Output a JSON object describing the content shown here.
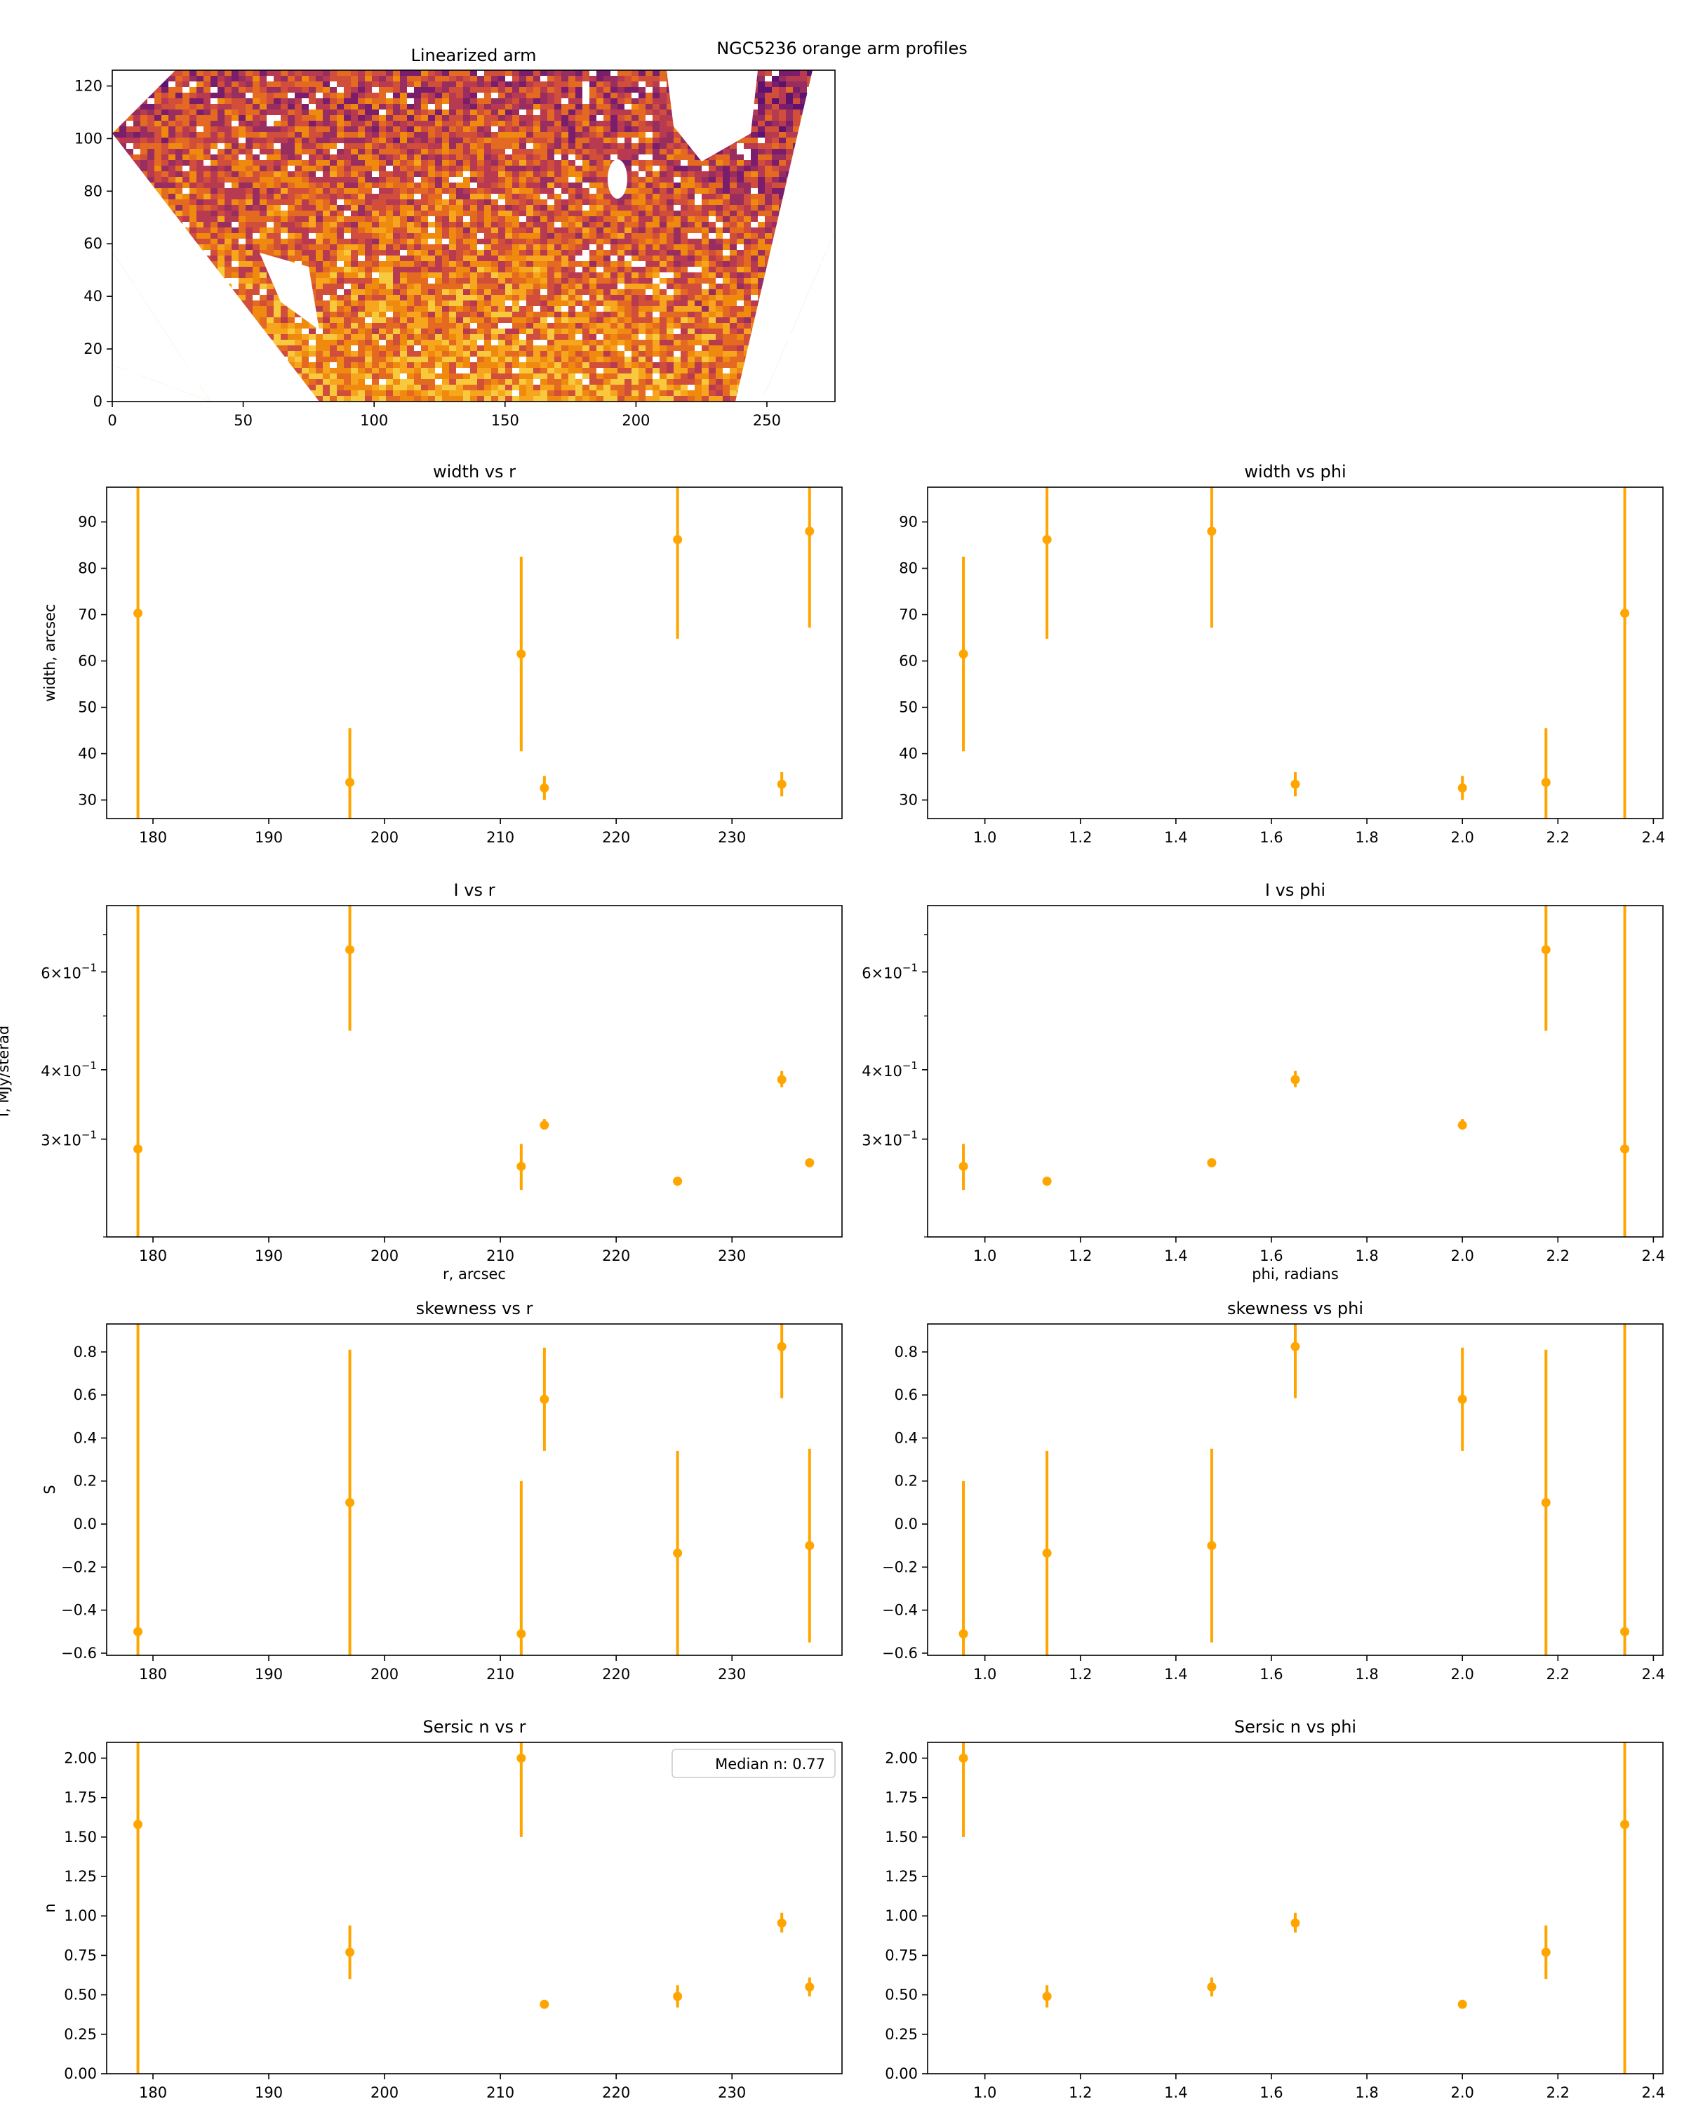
{
  "figure": {
    "suptitle": "NGC5236 orange arm profiles",
    "errorbar_color": "#FFA500"
  },
  "heatmap": {
    "title": "Linearized arm",
    "x_ticks": [
      "0",
      "50",
      "100",
      "150",
      "200",
      "250"
    ],
    "y_ticks": [
      "0",
      "20",
      "40",
      "60",
      "80",
      "100",
      "120"
    ],
    "colormap": "inferno",
    "masked_color": "#FFFFFF"
  },
  "chart_data": [
    {
      "id": "width_r",
      "type": "scatter",
      "title": "width vs r",
      "xlabel": "",
      "ylabel": "width, arcsec",
      "xlim": [
        176,
        239.5
      ],
      "ylim": [
        26,
        97.5
      ],
      "yscale": "linear",
      "x_ticks": [
        180,
        190,
        200,
        210,
        220,
        230
      ],
      "x_tick_labels": [
        "180",
        "190",
        "200",
        "210",
        "220",
        "230"
      ],
      "y_ticks": [
        30,
        40,
        50,
        60,
        70,
        80,
        90
      ],
      "y_tick_labels": [
        "30",
        "40",
        "50",
        "60",
        "70",
        "80",
        "90"
      ],
      "points": [
        {
          "x": 178.7,
          "y": 70.3,
          "lo": 26.0,
          "hi": 97.5
        },
        {
          "x": 197.0,
          "y": 33.8,
          "lo": 26.0,
          "hi": 45.5
        },
        {
          "x": 211.8,
          "y": 61.5,
          "lo": 40.5,
          "hi": 82.5
        },
        {
          "x": 213.8,
          "y": 32.6,
          "lo": 30.0,
          "hi": 35.2
        },
        {
          "x": 225.3,
          "y": 86.2,
          "lo": 64.8,
          "hi": 97.5
        },
        {
          "x": 234.3,
          "y": 33.4,
          "lo": 30.8,
          "hi": 36.0
        },
        {
          "x": 236.7,
          "y": 88.0,
          "lo": 67.2,
          "hi": 97.5
        }
      ]
    },
    {
      "id": "width_phi",
      "type": "scatter",
      "title": "width vs phi",
      "xlabel": "",
      "ylabel": "",
      "xlim": [
        0.88,
        2.42
      ],
      "ylim": [
        26,
        97.5
      ],
      "yscale": "linear",
      "x_ticks": [
        1.0,
        1.2,
        1.4,
        1.6,
        1.8,
        2.0,
        2.2,
        2.4
      ],
      "x_tick_labels": [
        "1.0",
        "1.2",
        "1.4",
        "1.6",
        "1.8",
        "2.0",
        "2.2",
        "2.4"
      ],
      "y_ticks": [
        30,
        40,
        50,
        60,
        70,
        80,
        90
      ],
      "y_tick_labels": [
        "30",
        "40",
        "50",
        "60",
        "70",
        "80",
        "90"
      ],
      "points": [
        {
          "x": 0.955,
          "y": 61.5,
          "lo": 40.5,
          "hi": 82.5
        },
        {
          "x": 1.13,
          "y": 86.2,
          "lo": 64.8,
          "hi": 97.5
        },
        {
          "x": 1.475,
          "y": 88.0,
          "lo": 67.2,
          "hi": 97.5
        },
        {
          "x": 1.65,
          "y": 33.4,
          "lo": 30.8,
          "hi": 36.0
        },
        {
          "x": 2.0,
          "y": 32.6,
          "lo": 30.0,
          "hi": 35.2
        },
        {
          "x": 2.175,
          "y": 33.8,
          "lo": 26.0,
          "hi": 45.5
        },
        {
          "x": 2.34,
          "y": 70.3,
          "lo": 26.0,
          "hi": 97.5
        }
      ]
    },
    {
      "id": "I_r",
      "type": "scatter",
      "title": "I vs r",
      "xlabel": "r, arcsec",
      "ylabel": "I, MJy/sterad",
      "xlim": [
        176,
        239.5
      ],
      "ylim": [
        0.2,
        0.79
      ],
      "yscale": "log",
      "x_ticks": [
        180,
        190,
        200,
        210,
        220,
        230
      ],
      "x_tick_labels": [
        "180",
        "190",
        "200",
        "210",
        "220",
        "230"
      ],
      "y_ticks": [
        0.3,
        0.4,
        0.6
      ],
      "y_tick_labels": [
        "3×10",
        "4×10",
        "6×10"
      ],
      "y_tick_exp": "−1",
      "points": [
        {
          "x": 178.7,
          "y": 0.288,
          "lo": 0.2,
          "hi": 0.79
        },
        {
          "x": 197.0,
          "y": 0.658,
          "lo": 0.47,
          "hi": 0.79
        },
        {
          "x": 211.8,
          "y": 0.268,
          "lo": 0.243,
          "hi": 0.294
        },
        {
          "x": 213.8,
          "y": 0.318,
          "lo": 0.312,
          "hi": 0.326
        },
        {
          "x": 225.3,
          "y": 0.252,
          "lo": 0.248,
          "hi": 0.256
        },
        {
          "x": 234.3,
          "y": 0.384,
          "lo": 0.372,
          "hi": 0.398
        },
        {
          "x": 236.7,
          "y": 0.272,
          "lo": 0.27,
          "hi": 0.275
        }
      ]
    },
    {
      "id": "I_phi",
      "type": "scatter",
      "title": "I vs phi",
      "xlabel": "phi, radians",
      "ylabel": "",
      "xlim": [
        0.88,
        2.42
      ],
      "ylim": [
        0.2,
        0.79
      ],
      "yscale": "log",
      "x_ticks": [
        1.0,
        1.2,
        1.4,
        1.6,
        1.8,
        2.0,
        2.2,
        2.4
      ],
      "x_tick_labels": [
        "1.0",
        "1.2",
        "1.4",
        "1.6",
        "1.8",
        "2.0",
        "2.2",
        "2.4"
      ],
      "y_ticks": [
        0.3,
        0.4,
        0.6
      ],
      "y_tick_labels": [
        "3×10",
        "4×10",
        "6×10"
      ],
      "y_tick_exp": "−1",
      "points": [
        {
          "x": 0.955,
          "y": 0.268,
          "lo": 0.243,
          "hi": 0.294
        },
        {
          "x": 1.13,
          "y": 0.252,
          "lo": 0.248,
          "hi": 0.256
        },
        {
          "x": 1.475,
          "y": 0.272,
          "lo": 0.27,
          "hi": 0.275
        },
        {
          "x": 1.65,
          "y": 0.384,
          "lo": 0.372,
          "hi": 0.398
        },
        {
          "x": 2.0,
          "y": 0.318,
          "lo": 0.312,
          "hi": 0.326
        },
        {
          "x": 2.175,
          "y": 0.658,
          "lo": 0.47,
          "hi": 0.79
        },
        {
          "x": 2.34,
          "y": 0.288,
          "lo": 0.2,
          "hi": 0.79
        }
      ]
    },
    {
      "id": "skew_r",
      "type": "scatter",
      "title": "skewness vs r",
      "xlabel": "",
      "ylabel": "S",
      "xlim": [
        176,
        239.5
      ],
      "ylim": [
        -0.61,
        0.93
      ],
      "yscale": "linear",
      "x_ticks": [
        180,
        190,
        200,
        210,
        220,
        230
      ],
      "x_tick_labels": [
        "180",
        "190",
        "200",
        "210",
        "220",
        "230"
      ],
      "y_ticks": [
        -0.6,
        -0.4,
        -0.2,
        0.0,
        0.2,
        0.4,
        0.6,
        0.8
      ],
      "y_tick_labels": [
        "−0.6",
        "−0.4",
        "−0.2",
        "0.0",
        "0.2",
        "0.4",
        "0.6",
        "0.8"
      ],
      "points": [
        {
          "x": 178.7,
          "y": -0.5,
          "lo": -0.61,
          "hi": 0.93
        },
        {
          "x": 197.0,
          "y": 0.1,
          "lo": -0.61,
          "hi": 0.81
        },
        {
          "x": 211.8,
          "y": -0.51,
          "lo": -0.61,
          "hi": 0.2
        },
        {
          "x": 213.8,
          "y": 0.58,
          "lo": 0.34,
          "hi": 0.82
        },
        {
          "x": 225.3,
          "y": -0.135,
          "lo": -0.61,
          "hi": 0.34
        },
        {
          "x": 234.3,
          "y": 0.825,
          "lo": 0.585,
          "hi": 0.93
        },
        {
          "x": 236.7,
          "y": -0.1,
          "lo": -0.55,
          "hi": 0.35
        }
      ]
    },
    {
      "id": "skew_phi",
      "type": "scatter",
      "title": "skewness vs phi",
      "xlabel": "",
      "ylabel": "",
      "xlim": [
        0.88,
        2.42
      ],
      "ylim": [
        -0.61,
        0.93
      ],
      "yscale": "linear",
      "x_ticks": [
        1.0,
        1.2,
        1.4,
        1.6,
        1.8,
        2.0,
        2.2,
        2.4
      ],
      "x_tick_labels": [
        "1.0",
        "1.2",
        "1.4",
        "1.6",
        "1.8",
        "2.0",
        "2.2",
        "2.4"
      ],
      "y_ticks": [
        -0.6,
        -0.4,
        -0.2,
        0.0,
        0.2,
        0.4,
        0.6,
        0.8
      ],
      "y_tick_labels": [
        "−0.6",
        "−0.4",
        "−0.2",
        "0.0",
        "0.2",
        "0.4",
        "0.6",
        "0.8"
      ],
      "points": [
        {
          "x": 0.955,
          "y": -0.51,
          "lo": -0.61,
          "hi": 0.2
        },
        {
          "x": 1.13,
          "y": -0.135,
          "lo": -0.61,
          "hi": 0.34
        },
        {
          "x": 1.475,
          "y": -0.1,
          "lo": -0.55,
          "hi": 0.35
        },
        {
          "x": 1.65,
          "y": 0.825,
          "lo": 0.585,
          "hi": 0.93
        },
        {
          "x": 2.0,
          "y": 0.58,
          "lo": 0.34,
          "hi": 0.82
        },
        {
          "x": 2.175,
          "y": 0.1,
          "lo": -0.61,
          "hi": 0.81
        },
        {
          "x": 2.34,
          "y": -0.5,
          "lo": -0.61,
          "hi": 0.93
        }
      ]
    },
    {
      "id": "n_r",
      "type": "scatter",
      "title": "Sersic n vs r",
      "xlabel": "",
      "ylabel": "n",
      "xlim": [
        176,
        239.5
      ],
      "ylim": [
        0.0,
        2.1
      ],
      "yscale": "linear",
      "x_ticks": [
        180,
        190,
        200,
        210,
        220,
        230
      ],
      "x_tick_labels": [
        "180",
        "190",
        "200",
        "210",
        "220",
        "230"
      ],
      "y_ticks": [
        0.0,
        0.25,
        0.5,
        0.75,
        1.0,
        1.25,
        1.5,
        1.75,
        2.0
      ],
      "y_tick_labels": [
        "0.00",
        "0.25",
        "0.50",
        "0.75",
        "1.00",
        "1.25",
        "1.50",
        "1.75",
        "2.00"
      ],
      "legend": "Median n: 0.77",
      "points": [
        {
          "x": 178.7,
          "y": 1.58,
          "lo": 0.0,
          "hi": 2.1
        },
        {
          "x": 197.0,
          "y": 0.77,
          "lo": 0.6,
          "hi": 0.94
        },
        {
          "x": 211.8,
          "y": 2.0,
          "lo": 1.5,
          "hi": 2.1
        },
        {
          "x": 213.8,
          "y": 0.44,
          "lo": 0.415,
          "hi": 0.465
        },
        {
          "x": 225.3,
          "y": 0.49,
          "lo": 0.42,
          "hi": 0.56
        },
        {
          "x": 234.3,
          "y": 0.955,
          "lo": 0.895,
          "hi": 1.02
        },
        {
          "x": 236.7,
          "y": 0.55,
          "lo": 0.49,
          "hi": 0.61
        }
      ]
    },
    {
      "id": "n_phi",
      "type": "scatter",
      "title": "Sersic n vs phi",
      "xlabel": "",
      "ylabel": "",
      "xlim": [
        0.88,
        2.42
      ],
      "ylim": [
        0.0,
        2.1
      ],
      "yscale": "linear",
      "x_ticks": [
        1.0,
        1.2,
        1.4,
        1.6,
        1.8,
        2.0,
        2.2,
        2.4
      ],
      "x_tick_labels": [
        "1.0",
        "1.2",
        "1.4",
        "1.6",
        "1.8",
        "2.0",
        "2.2",
        "2.4"
      ],
      "y_ticks": [
        0.0,
        0.25,
        0.5,
        0.75,
        1.0,
        1.25,
        1.5,
        1.75,
        2.0
      ],
      "y_tick_labels": [
        "0.00",
        "0.25",
        "0.50",
        "0.75",
        "1.00",
        "1.25",
        "1.50",
        "1.75",
        "2.00"
      ],
      "points": [
        {
          "x": 0.955,
          "y": 2.0,
          "lo": 1.5,
          "hi": 2.1
        },
        {
          "x": 1.13,
          "y": 0.49,
          "lo": 0.42,
          "hi": 0.56
        },
        {
          "x": 1.475,
          "y": 0.55,
          "lo": 0.49,
          "hi": 0.61
        },
        {
          "x": 1.65,
          "y": 0.955,
          "lo": 0.895,
          "hi": 1.02
        },
        {
          "x": 2.0,
          "y": 0.44,
          "lo": 0.415,
          "hi": 0.465
        },
        {
          "x": 2.175,
          "y": 0.77,
          "lo": 0.6,
          "hi": 0.94
        },
        {
          "x": 2.34,
          "y": 1.58,
          "lo": 0.0,
          "hi": 2.1
        }
      ]
    }
  ]
}
